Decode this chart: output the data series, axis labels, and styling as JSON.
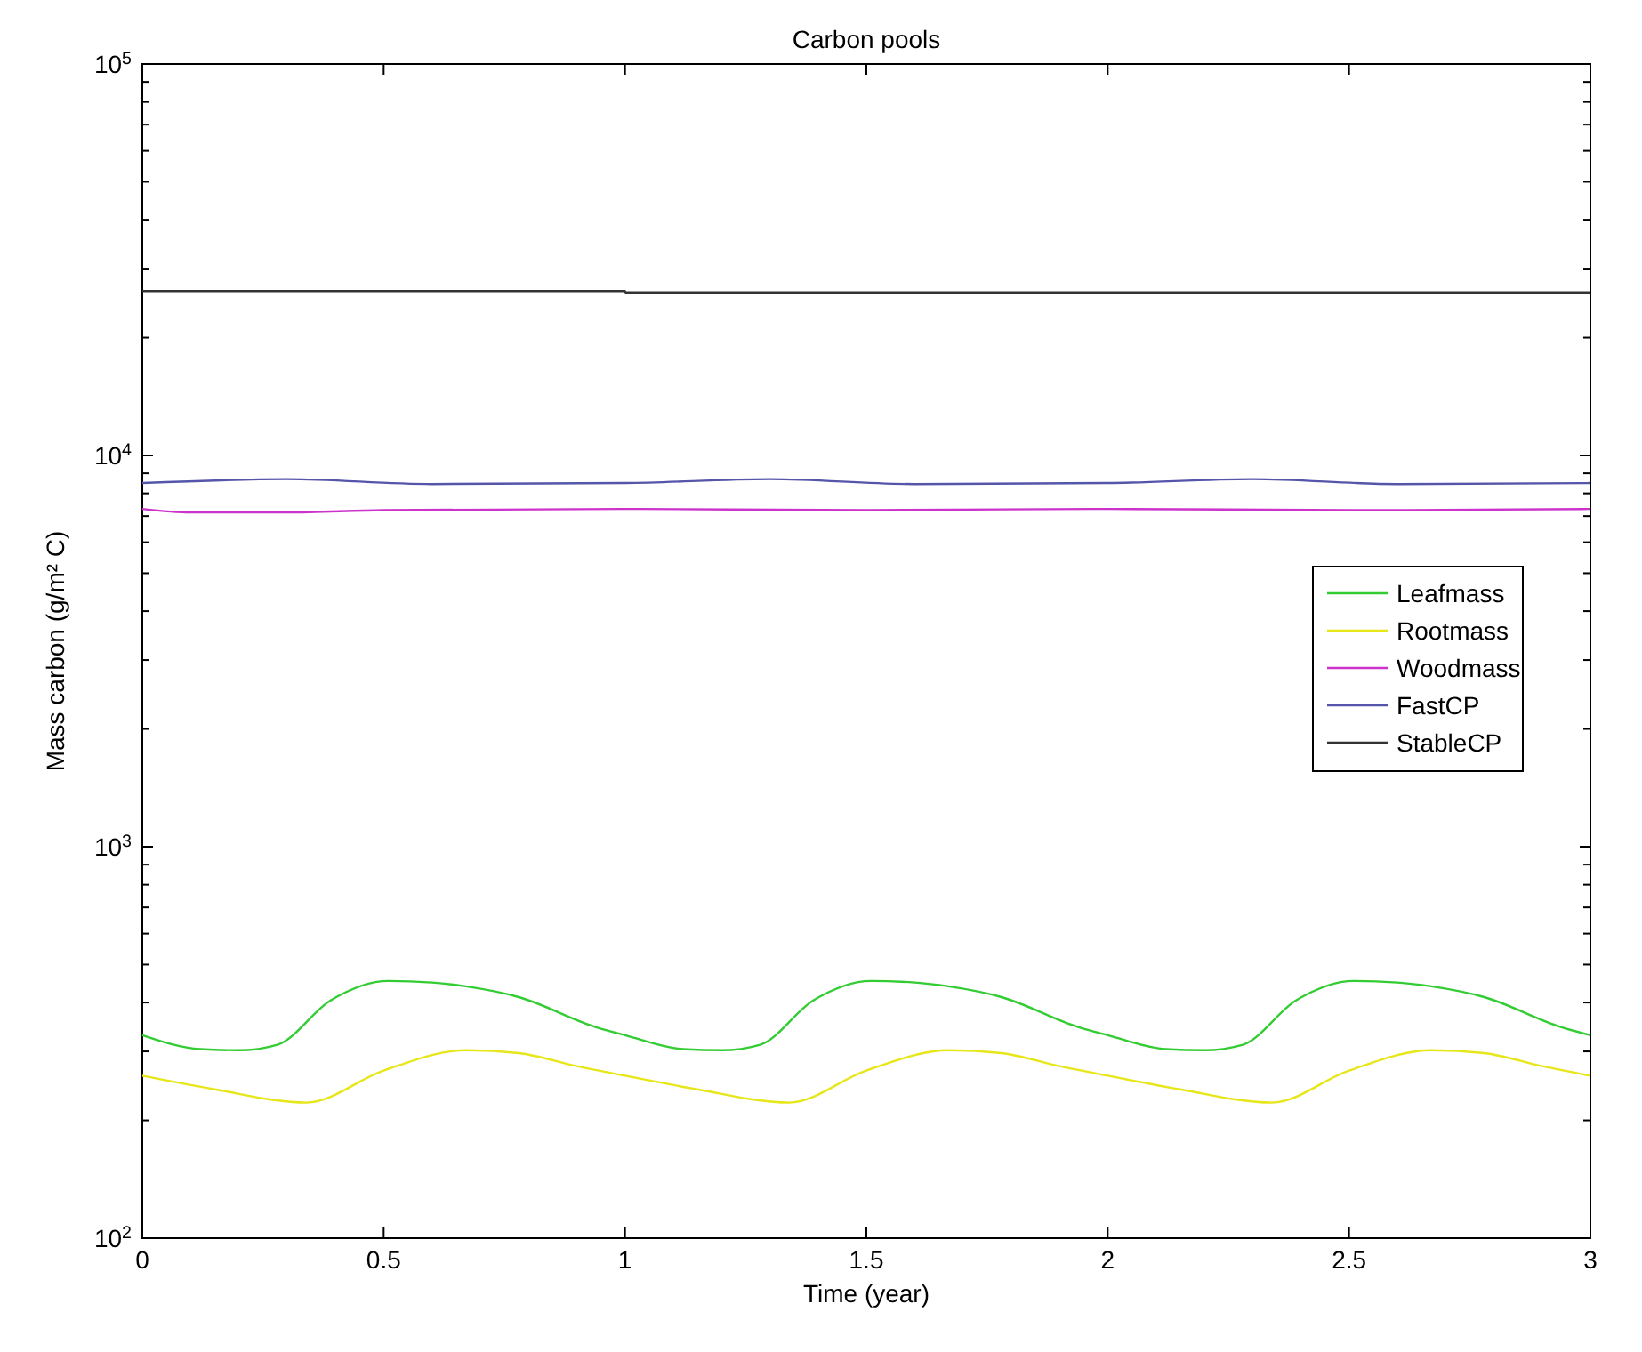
{
  "chart_data": {
    "type": "line",
    "title": "Carbon pools",
    "xlabel": "Time (year)",
    "ylabel": "Mass carbon (g/m² C)",
    "log": "y",
    "xlim": [
      0,
      3
    ],
    "xticks": [
      0,
      0.5,
      1,
      1.5,
      2,
      2.5,
      3
    ],
    "ylim": [
      100,
      100000
    ],
    "yticks": [
      {
        "value": 100,
        "label": "10$^{2}$"
      },
      {
        "value": 1000,
        "label": "10$^{3}$"
      },
      {
        "value": 10000,
        "label": "10$^{4}$"
      },
      {
        "value": 100000,
        "label": "10$^{5}$"
      },
      {
        "value": 200,
        "label": null
      },
      {
        "value": 300,
        "label": null
      },
      {
        "value": 400,
        "label": null
      },
      {
        "value": 500,
        "label": null
      },
      {
        "value": 600,
        "label": null
      },
      {
        "value": 700,
        "label": null
      },
      {
        "value": 800,
        "label": null
      },
      {
        "value": 900,
        "label": null
      },
      {
        "value": 2000,
        "label": null
      },
      {
        "value": 3000,
        "label": null
      },
      {
        "value": 4000,
        "label": null
      },
      {
        "value": 5000,
        "label": null
      },
      {
        "value": 6000,
        "label": null
      },
      {
        "value": 7000,
        "label": null
      },
      {
        "value": 8000,
        "label": null
      },
      {
        "value": 9000,
        "label": null
      },
      {
        "value": 20000,
        "label": null
      },
      {
        "value": 30000,
        "label": null
      },
      {
        "value": 40000,
        "label": null
      },
      {
        "value": 50000,
        "label": null
      },
      {
        "value": 60000,
        "label": null
      },
      {
        "value": 70000,
        "label": null
      },
      {
        "value": 80000,
        "label": null
      },
      {
        "value": 90000,
        "label": null
      }
    ],
    "grid": false,
    "legend": "right",
    "series": [
      {
        "name": "Leafmass",
        "color": "#33cc33",
        "x": [
          0,
          0.12,
          0.2,
          0.28,
          0.39,
          0.51,
          0.6,
          0.67,
          0.78,
          0.94,
          1,
          1.12,
          1.2,
          1.28,
          1.39,
          1.51,
          1.6,
          1.67,
          1.78,
          1.94,
          2,
          2.12,
          2.2,
          2.28,
          2.39,
          2.51,
          2.6,
          2.67,
          2.78,
          2.94,
          3
        ],
        "values": [
          330,
          304,
          302,
          312,
          405,
          454,
          450,
          440,
          413,
          346,
          330,
          304,
          302,
          312,
          405,
          454,
          450,
          440,
          413,
          346,
          330,
          304,
          302,
          312,
          405,
          454,
          450,
          440,
          413,
          346,
          330
        ]
      },
      {
        "name": "Rootmass",
        "color": "#e6e619",
        "x": [
          0,
          0.15,
          0.34,
          0.5,
          0.67,
          0.78,
          0.9,
          1,
          1.15,
          1.34,
          1.5,
          1.67,
          1.78,
          1.9,
          2,
          2.15,
          2.34,
          2.5,
          2.67,
          2.78,
          2.9,
          3
        ],
        "values": [
          260,
          240,
          222,
          268,
          302,
          297,
          275,
          260,
          240,
          222,
          268,
          302,
          297,
          275,
          260,
          240,
          222,
          268,
          302,
          297,
          275,
          260
        ]
      },
      {
        "name": "Woodmass",
        "color": "#cc33cc",
        "x": [
          0,
          0.1,
          0.3,
          0.5,
          1,
          1.5,
          2,
          2.5,
          3
        ],
        "values": [
          7300,
          7150,
          7150,
          7250,
          7300,
          7250,
          7300,
          7250,
          7300
        ]
      },
      {
        "name": "FastCP",
        "color": "#5555aa",
        "x": [
          0,
          0.3,
          0.6,
          1,
          1.3,
          1.6,
          2,
          2.3,
          2.6,
          3
        ],
        "values": [
          8500,
          8700,
          8450,
          8500,
          8700,
          8450,
          8500,
          8700,
          8450,
          8500
        ]
      },
      {
        "name": "StableCP",
        "color": "#333333",
        "x": [
          0,
          1,
          1.001,
          3
        ],
        "values": [
          26300,
          26300,
          26100,
          26100
        ]
      }
    ]
  }
}
